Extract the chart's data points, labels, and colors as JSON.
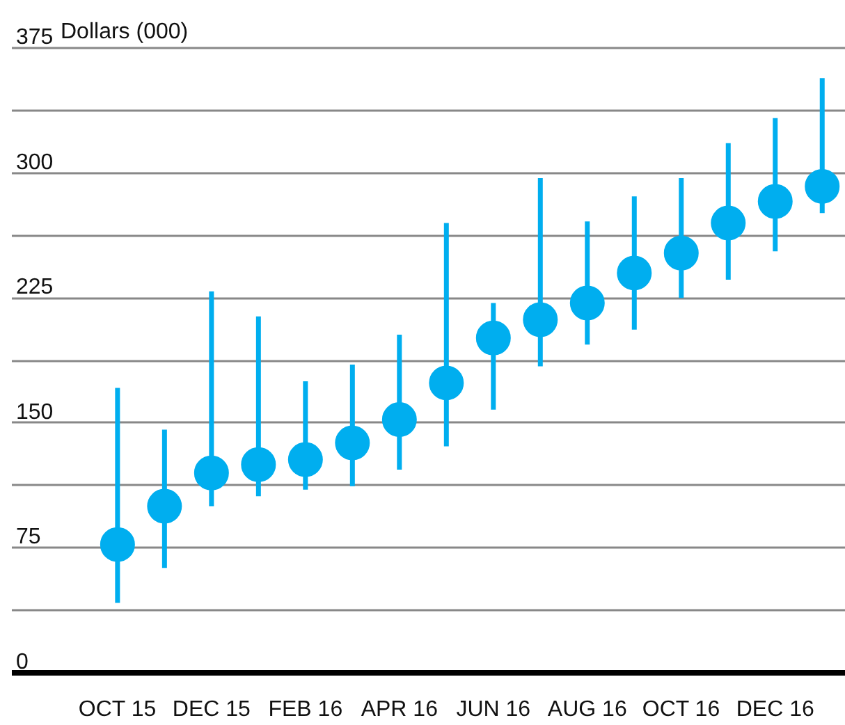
{
  "chart_data": {
    "type": "scatter",
    "ylabel": "Dollars (000)",
    "categories": [
      "OCT 15",
      null,
      "DEC 15",
      null,
      "FEB 16",
      null,
      "APR 16",
      null,
      "JUN 16",
      null,
      "AUG 16",
      null,
      "OCT 16",
      null,
      "DEC 16",
      null
    ],
    "values": [
      77,
      100,
      120,
      125,
      128,
      138,
      152,
      174,
      201,
      212,
      222,
      240,
      252,
      270,
      283,
      292
    ],
    "errors": [
      [
        42,
        171
      ],
      [
        63,
        146
      ],
      [
        100,
        229
      ],
      [
        106,
        214
      ],
      [
        110,
        175
      ],
      [
        112,
        185
      ],
      [
        122,
        203
      ],
      [
        136,
        270
      ],
      [
        158,
        222
      ],
      [
        184,
        297
      ],
      [
        197,
        271
      ],
      [
        206,
        286
      ],
      [
        225,
        297
      ],
      [
        236,
        318
      ],
      [
        253,
        333
      ],
      [
        276,
        357
      ]
    ],
    "color": "#00aeef",
    "marker": "circle",
    "grid": "y",
    "ylim": [
      0,
      375
    ],
    "yticks": [
      0,
      {
        "value": 37.5,
        "label": null
      },
      75,
      {
        "value": 112.5,
        "label": null
      },
      150,
      {
        "value": 187.5,
        "label": null
      },
      225,
      {
        "value": 262.5,
        "label": null
      },
      300,
      {
        "value": 337.5,
        "label": null
      },
      375
    ]
  }
}
